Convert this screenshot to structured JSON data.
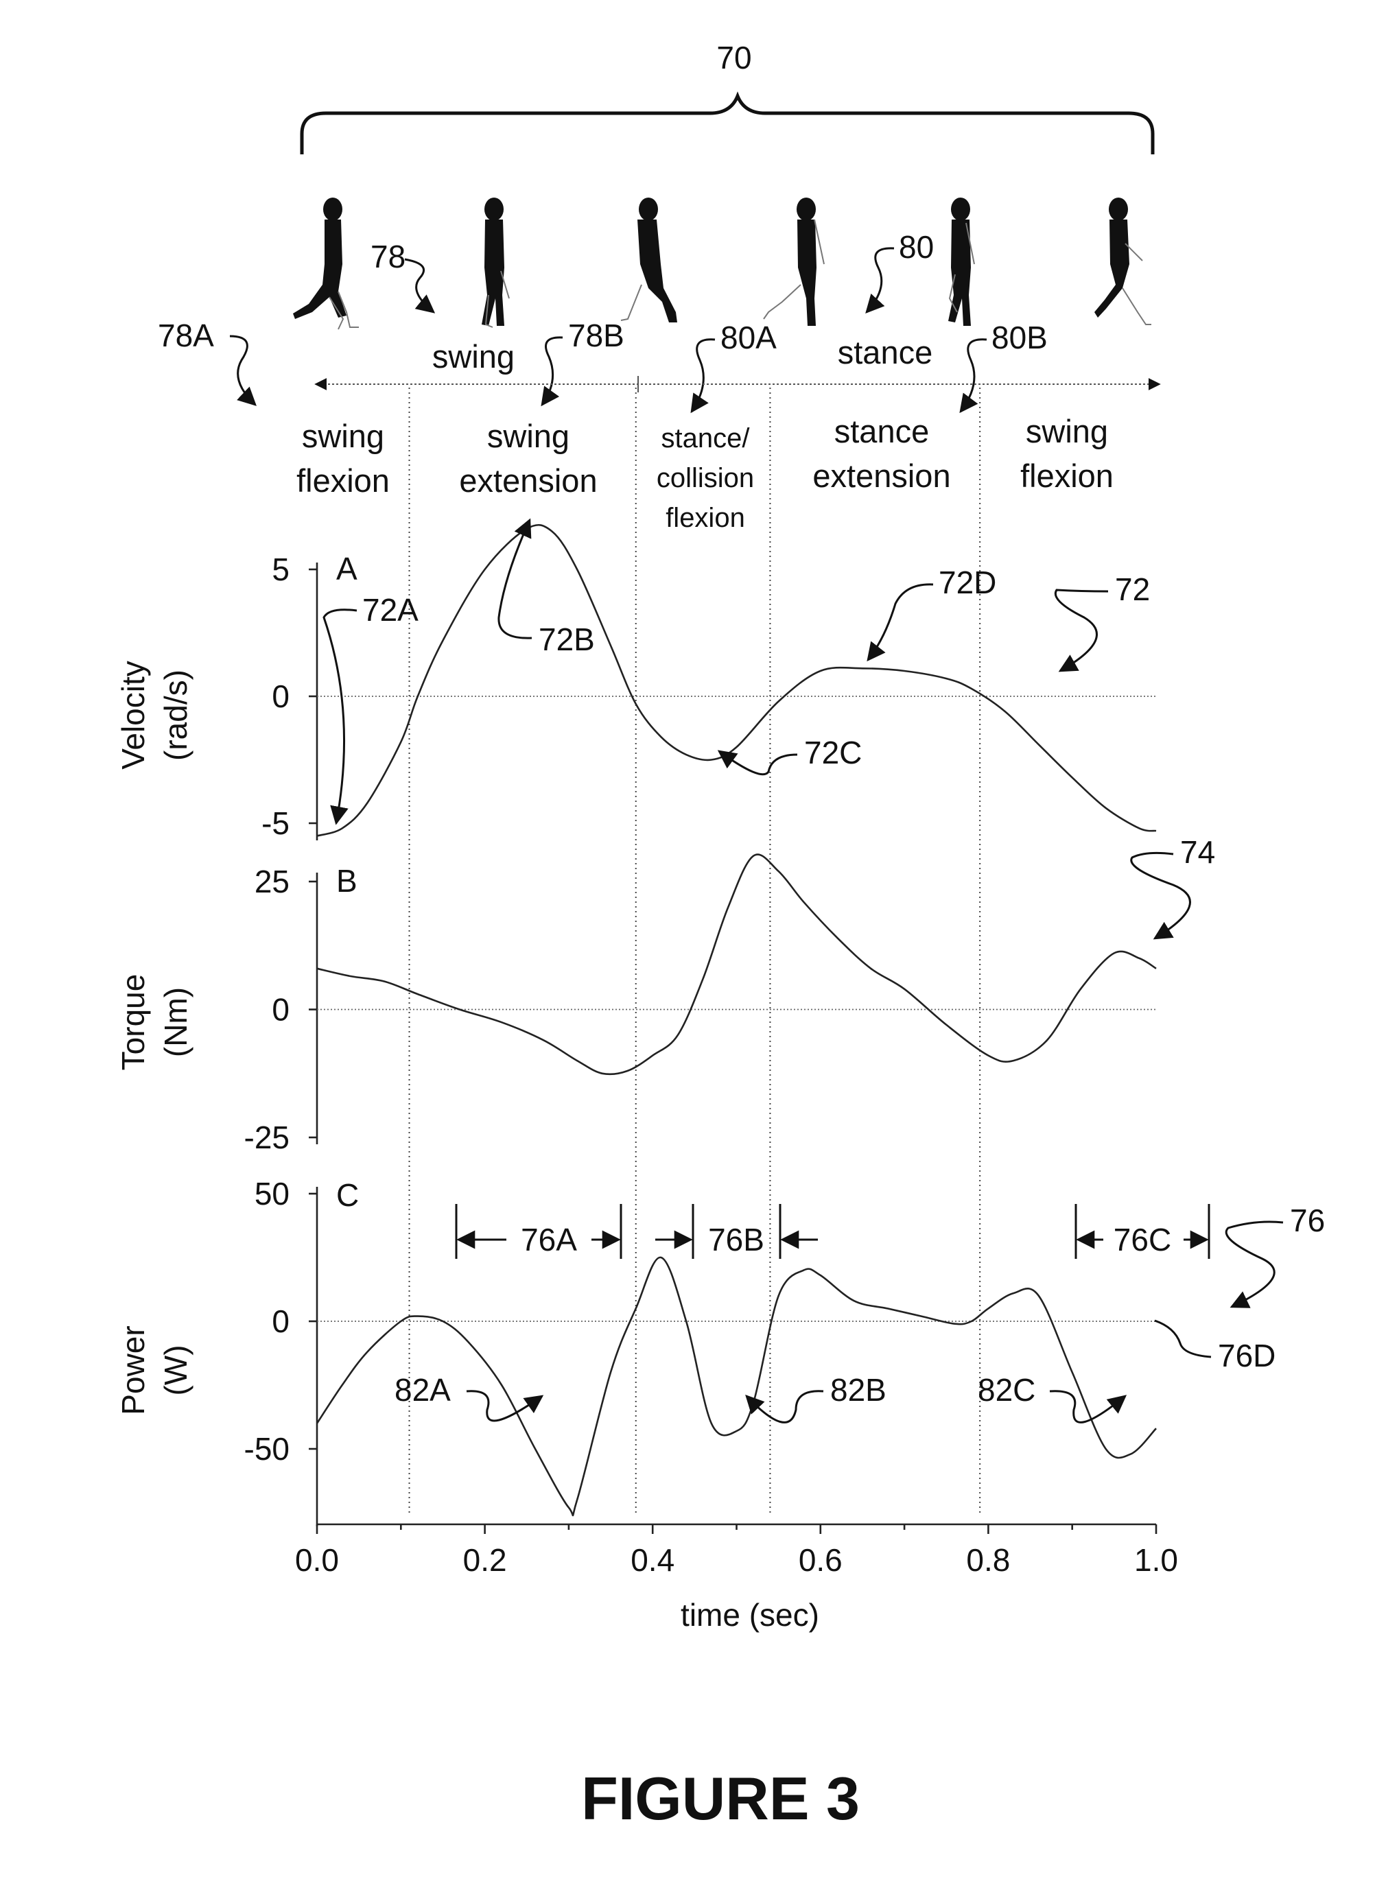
{
  "figure_title": "FIGURE 3",
  "gait_cycle_ref": "70",
  "gait_phases": {
    "swing_ref": "78",
    "swing_label": "swing",
    "stance_ref": "80",
    "stance_label": "stance",
    "sub_refs": [
      "78A",
      "78B",
      "80A",
      "80B"
    ],
    "subphase_labels": [
      [
        "swing",
        "flexion"
      ],
      [
        "swing",
        "extension"
      ],
      [
        "stance/",
        "collision",
        "flexion"
      ],
      [
        "stance",
        "extension"
      ],
      [
        "swing",
        "flexion"
      ]
    ],
    "phase_boundaries_sec": [
      0.11,
      0.38,
      0.54,
      0.79
    ]
  },
  "chart_data": [
    {
      "type": "line",
      "panel": "A",
      "ylabel": [
        "Velocity",
        "(rad/s)"
      ],
      "yticks": [
        "5",
        "0",
        "-5"
      ],
      "ylim": [
        -5.5,
        7.2
      ],
      "series_ref": "72",
      "x": [
        0.0,
        0.03,
        0.06,
        0.1,
        0.12,
        0.15,
        0.2,
        0.25,
        0.28,
        0.31,
        0.35,
        0.38,
        0.41,
        0.44,
        0.47,
        0.5,
        0.55,
        0.6,
        0.65,
        0.7,
        0.75,
        0.78,
        0.82,
        0.86,
        0.9,
        0.94,
        0.98,
        1.0
      ],
      "values": [
        -5.5,
        -5.2,
        -4.2,
        -1.8,
        0.0,
        2.2,
        5.0,
        6.6,
        6.5,
        5.0,
        2.0,
        -0.3,
        -1.6,
        -2.3,
        -2.5,
        -2.0,
        -0.2,
        1.0,
        1.1,
        1.0,
        0.7,
        0.3,
        -0.6,
        -1.9,
        -3.2,
        -4.4,
        -5.2,
        -5.3
      ],
      "annotations": [
        "72A",
        "72B",
        "72C",
        "72D",
        "72"
      ]
    },
    {
      "type": "line",
      "panel": "B",
      "ylabel": [
        "Torque",
        "(Nm)"
      ],
      "yticks": [
        "25",
        "0",
        "-25"
      ],
      "ylim": [
        -25,
        25
      ],
      "series_ref": "74",
      "x": [
        0.0,
        0.04,
        0.08,
        0.12,
        0.17,
        0.22,
        0.27,
        0.31,
        0.34,
        0.37,
        0.4,
        0.43,
        0.46,
        0.49,
        0.52,
        0.55,
        0.58,
        0.62,
        0.66,
        0.7,
        0.75,
        0.8,
        0.83,
        0.87,
        0.91,
        0.95,
        0.98,
        1.0
      ],
      "values": [
        8,
        6.5,
        5.5,
        3,
        0,
        -2.5,
        -6,
        -10,
        -12.5,
        -12,
        -9,
        -5,
        6,
        20,
        30,
        27,
        21,
        14,
        8,
        4,
        -3,
        -9,
        -10,
        -6,
        4,
        11,
        10,
        8
      ],
      "annotations": [
        "74"
      ]
    },
    {
      "type": "line",
      "panel": "C",
      "ylabel": [
        "Power",
        "(W)"
      ],
      "yticks": [
        "50",
        "0",
        "-50"
      ],
      "ylim": [
        -78,
        50
      ],
      "series_ref": "76",
      "x": [
        0.0,
        0.03,
        0.06,
        0.1,
        0.12,
        0.15,
        0.18,
        0.22,
        0.26,
        0.3,
        0.31,
        0.35,
        0.38,
        0.41,
        0.44,
        0.47,
        0.5,
        0.52,
        0.55,
        0.58,
        0.6,
        0.64,
        0.68,
        0.72,
        0.76,
        0.78,
        0.8,
        0.83,
        0.86,
        0.9,
        0.94,
        0.97,
        1.0
      ],
      "values": [
        -40,
        -25,
        -12,
        0,
        2,
        0,
        -8,
        -25,
        -50,
        -73,
        -70,
        -20,
        5,
        25,
        0,
        -40,
        -43,
        -32,
        10,
        20,
        18,
        8,
        5,
        2,
        -1,
        0,
        5,
        11,
        10,
        -20,
        -50,
        -52,
        -42
      ],
      "intervals": [
        "76A",
        "76B",
        "76C"
      ],
      "annotations": [
        "76",
        "76D",
        "82A",
        "82B",
        "82C"
      ]
    }
  ],
  "x_axis": {
    "ticks": [
      "0.0",
      "0.2",
      "0.4",
      "0.6",
      "0.8",
      "1.0"
    ],
    "label": "time (sec)",
    "range": [
      0,
      1
    ]
  }
}
